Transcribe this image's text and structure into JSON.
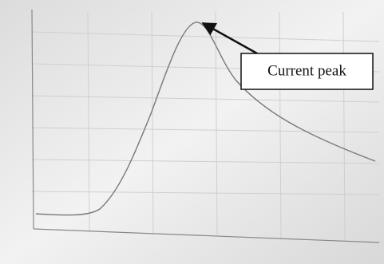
{
  "annotation": {
    "text": "Current peak"
  }
}
